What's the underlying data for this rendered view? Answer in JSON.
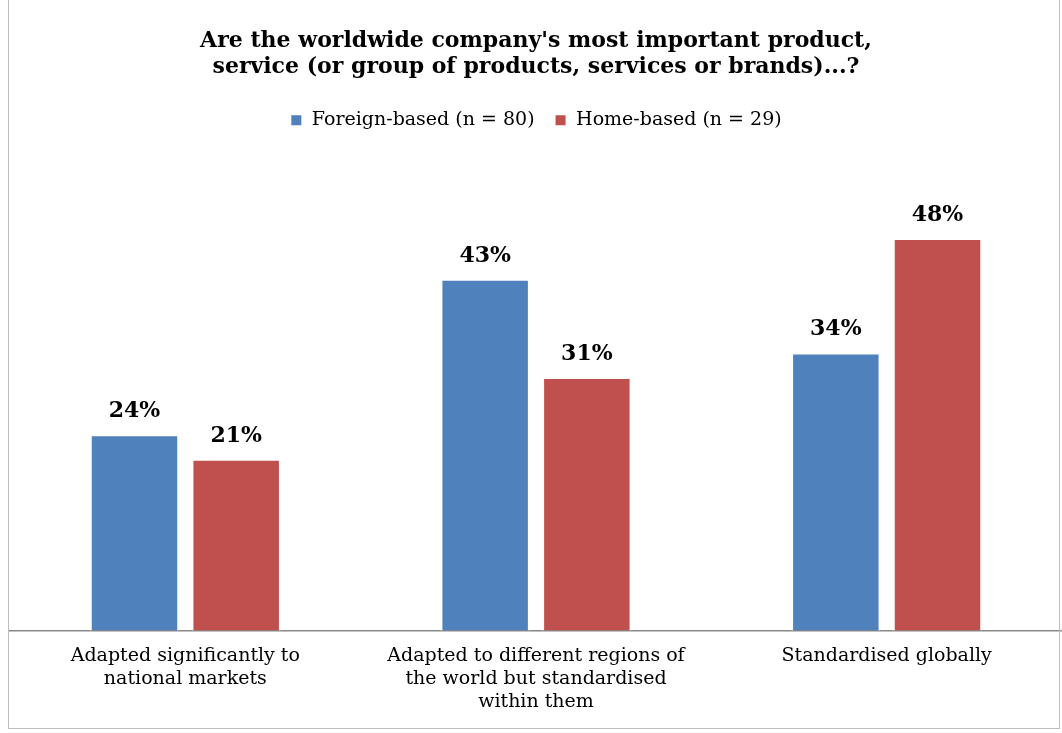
{
  "chart_data": {
    "type": "bar",
    "title": "Are the worldwide company's most important product, service (or group of products, services or brands)...?",
    "categories": [
      "Adapted significantly to national markets",
      "Adapted to different regions of the world but standardised within them",
      "Standardised globally"
    ],
    "series": [
      {
        "name": "Foreign-based (n = 80)",
        "color": "#4f81bd",
        "values": [
          24,
          43,
          34
        ],
        "value_labels": [
          "24%",
          "43%",
          "34%"
        ]
      },
      {
        "name": "Home-based (n = 29)",
        "color": "#c0504d",
        "values": [
          21,
          31,
          48
        ],
        "value_labels": [
          "21%",
          "31%",
          "48%"
        ]
      }
    ],
    "legend": "top",
    "grid": false
  }
}
